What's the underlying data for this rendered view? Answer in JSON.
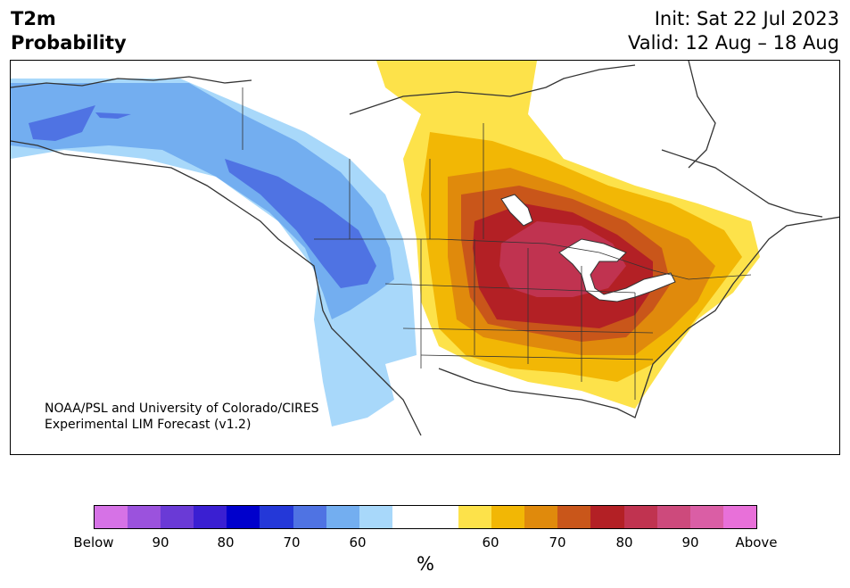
{
  "header": {
    "variable": "T2m",
    "product": "Probability",
    "init": "Init: Sat 22 Jul 2023",
    "valid": "Valid: 12 Aug – 18 Aug"
  },
  "credit": {
    "line1": "NOAA/PSL and University of Colorado/CIRES",
    "line2": "Experimental LIM Forecast (v1.2)"
  },
  "colorbar": {
    "colors": [
      "#d672e6",
      "#9b52dd",
      "#6a3ad6",
      "#3a1fd2",
      "#0000cc",
      "#2438d8",
      "#4f73e3",
      "#73aef0",
      "#a8d8fa",
      "#ffffff",
      "#ffffff",
      "#fde24a",
      "#f2b705",
      "#e08a0c",
      "#c9561a",
      "#b32025",
      "#c03350",
      "#cd4a7c",
      "#da5ea5",
      "#e870d9"
    ],
    "tick_labels": [
      "Below",
      "90",
      "80",
      "70",
      "60",
      "60",
      "70",
      "80",
      "90",
      "Above"
    ],
    "unit": "%"
  },
  "map": {
    "colors": {
      "cold_60": "#a8d8fa",
      "cold_70": "#73aef0",
      "cold_80": "#4f73e3",
      "warm_60": "#fde24a",
      "warm_70": "#f2b705",
      "warm_80": "#e08a0c",
      "warm_90": "#c9561a",
      "warm_95": "#b32025",
      "warm_top": "#c03350",
      "coast": "#333333"
    }
  }
}
